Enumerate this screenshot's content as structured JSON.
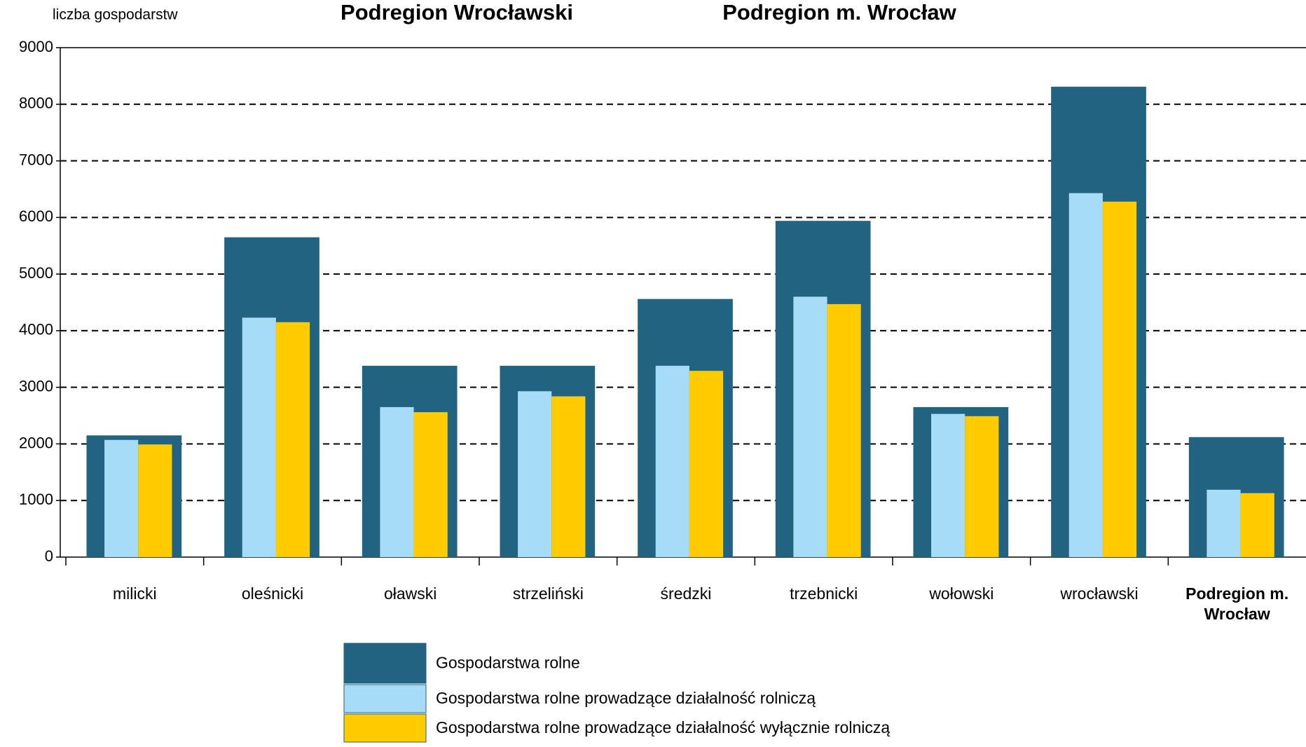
{
  "chart_data": {
    "type": "bar",
    "titles": [
      "Podregion Wrocławski",
      "Podregion m. Wrocław"
    ],
    "y_label": "liczba gospodarstw",
    "categories": [
      "milicki",
      "oleśnicki",
      "oławski",
      "strzeliński",
      "średzki",
      "trzebnicki",
      "wołowski",
      "wrocławski",
      "Podregion m. Wrocław"
    ],
    "series": [
      {
        "name": "Gospodarstwa rolne",
        "color": "#236382",
        "values": [
          2150,
          5650,
          3380,
          3380,
          4560,
          5940,
          2650,
          8310,
          2120
        ]
      },
      {
        "name": "Gospodarstwa rolne prowadzące działalność rolniczą",
        "color": "#a6dcf7",
        "values": [
          2070,
          4230,
          2650,
          2930,
          3380,
          4600,
          2530,
          6430,
          1190
        ]
      },
      {
        "name": "Gospodarstwa rolne prowadzące działalność wyłącznie rolniczą",
        "color": "#ffcc00",
        "values": [
          1990,
          4150,
          2560,
          2840,
          3290,
          4470,
          2490,
          6280,
          1130
        ]
      }
    ],
    "ylim": [
      0,
      9000
    ],
    "yticks": [
      0,
      1000,
      2000,
      3000,
      4000,
      5000,
      6000,
      7000,
      8000,
      9000
    ],
    "grid": true
  }
}
